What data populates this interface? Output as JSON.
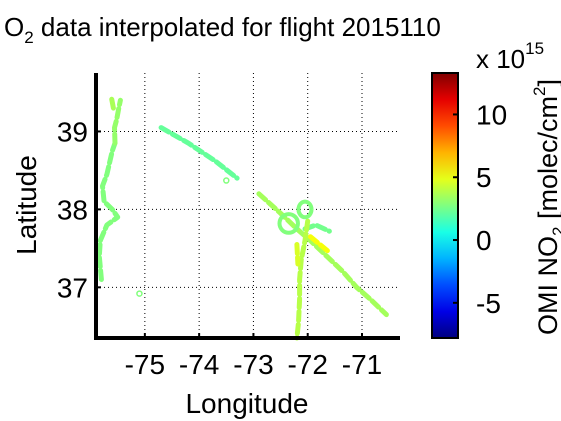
{
  "chart_data": {
    "type": "scatter",
    "title_prefix": "O",
    "title_sub": "2",
    "title_rest": " data interpolated for flight 2015110",
    "xlabel": "Longitude",
    "ylabel": "Latitude",
    "xlim": [
      -75.9,
      -70.3
    ],
    "ylim": [
      36.35,
      39.75
    ],
    "xticks": [
      -75,
      -74,
      -73,
      -72,
      -71
    ],
    "xtick_labels": [
      "-75",
      "-74",
      "-73",
      "-72",
      "-71"
    ],
    "yticks": [
      37,
      38,
      39
    ],
    "ytick_labels": [
      "37",
      "38",
      "39"
    ],
    "grid": "dotted",
    "colorbar": {
      "label_main": "OMI NO",
      "label_sub": "2",
      "label_unit": "  [molec/cm",
      "label_unit_sup": "2",
      "label_end": "]",
      "multiplier_base": "x 10",
      "multiplier_exp": "15",
      "clim": [
        -7.8,
        13.3
      ],
      "ticks": [
        -5,
        0,
        5,
        10
      ],
      "tick_labels": [
        "-5",
        "0",
        "5",
        "10"
      ],
      "colormap": "jet"
    },
    "series": [
      {
        "path": [
          [
            -75.8,
            37.1
          ],
          [
            -75.84,
            37.4
          ],
          [
            -75.82,
            37.6
          ],
          [
            -75.7,
            37.8
          ],
          [
            -75.5,
            37.9
          ],
          [
            -75.6,
            38.0
          ],
          [
            -75.75,
            38.1
          ],
          [
            -75.78,
            38.3
          ],
          [
            -75.7,
            38.45
          ],
          [
            -75.65,
            38.6
          ],
          [
            -75.6,
            38.75
          ],
          [
            -75.55,
            38.85
          ]
        ],
        "value": 2.8
      },
      {
        "path": [
          [
            -75.55,
            38.85
          ],
          [
            -75.56,
            39.05
          ],
          [
            -75.52,
            39.15
          ],
          [
            -75.48,
            39.3
          ],
          [
            -75.45,
            39.4
          ]
        ],
        "value": 3.2
      },
      {
        "path": [
          [
            -75.58,
            39.3
          ],
          [
            -75.62,
            39.45
          ]
        ],
        "value": 3.6
      },
      {
        "path": [
          [
            -74.7,
            39.05
          ],
          [
            -74.2,
            38.85
          ],
          [
            -73.7,
            38.62
          ],
          [
            -73.3,
            38.4
          ]
        ],
        "value": 2.2
      },
      {
        "path": [
          [
            -72.9,
            38.2
          ],
          [
            -72.5,
            37.95
          ],
          [
            -72.2,
            37.75
          ],
          [
            -71.95,
            37.6
          ],
          [
            -71.65,
            37.4
          ],
          [
            -71.35,
            37.2
          ],
          [
            -71.1,
            37.0
          ],
          [
            -70.85,
            36.85
          ],
          [
            -70.55,
            36.65
          ]
        ],
        "value": 3.5
      },
      {
        "path": [
          [
            -71.95,
            37.65
          ],
          [
            -71.6,
            37.45
          ]
        ],
        "value": 5.2
      },
      {
        "path": [
          [
            -72.05,
            37.75
          ],
          [
            -71.85,
            37.8
          ],
          [
            -71.6,
            37.72
          ]
        ],
        "value": 2.5
      },
      {
        "path": [
          [
            -72.0,
            37.85
          ],
          [
            -72.05,
            37.6
          ],
          [
            -72.12,
            37.35
          ],
          [
            -72.15,
            37.1
          ],
          [
            -72.15,
            36.85
          ],
          [
            -72.17,
            36.55
          ],
          [
            -72.2,
            36.35
          ]
        ],
        "value": 3.9
      },
      {
        "path": [
          [
            -72.2,
            37.55
          ],
          [
            -72.18,
            37.3
          ]
        ],
        "value": 4.6
      }
    ],
    "loops": [
      {
        "center": [
          -72.35,
          37.82
        ],
        "rx": 0.17,
        "ry": 0.12,
        "value": 2.8
      },
      {
        "center": [
          -72.05,
          38.0
        ],
        "rx": 0.12,
        "ry": 0.1,
        "value": 2.8
      }
    ],
    "points": [
      {
        "x": -75.1,
        "y": 36.92,
        "value": 2.8
      },
      {
        "x": -73.5,
        "y": 38.37,
        "value": 2.8
      }
    ]
  }
}
